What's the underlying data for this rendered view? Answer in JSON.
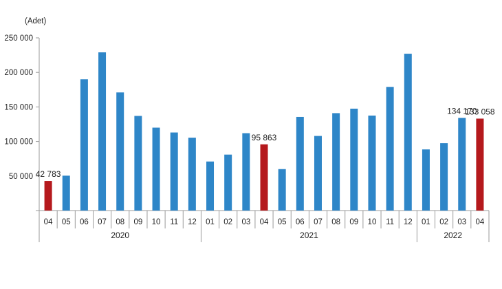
{
  "chart_data": {
    "type": "bar",
    "ylabel": "(Adet)",
    "ylim": [
      0,
      250000
    ],
    "yticks": [
      {
        "value": 0,
        "label": ""
      },
      {
        "value": 50000,
        "label": "50 000"
      },
      {
        "value": 100000,
        "label": "100 000"
      },
      {
        "value": 150000,
        "label": "150 000"
      },
      {
        "value": 200000,
        "label": "200 000"
      },
      {
        "value": 250000,
        "label": "250 000"
      }
    ],
    "grid": false,
    "colors": {
      "default": "#2e86c8",
      "highlight": "#b5191d"
    },
    "groups": [
      {
        "year": "2020",
        "months": [
          "04",
          "05",
          "06",
          "07",
          "08",
          "09",
          "10",
          "11",
          "12"
        ]
      },
      {
        "year": "2021",
        "months": [
          "01",
          "02",
          "03",
          "04",
          "05",
          "06",
          "07",
          "08",
          "09",
          "10",
          "11",
          "12"
        ]
      },
      {
        "year": "2022",
        "months": [
          "01",
          "02",
          "03",
          "04"
        ]
      }
    ],
    "values": [
      42783,
      50500,
      190000,
      229000,
      171000,
      137000,
      120000,
      113000,
      105500,
      71000,
      81000,
      112000,
      95863,
      60000,
      135500,
      108000,
      141000,
      147500,
      137500,
      179000,
      227000,
      88500,
      97500,
      134170,
      133058
    ],
    "highlight": [
      0,
      12,
      24
    ],
    "data_labels": [
      {
        "index": 0,
        "text": "42 783"
      },
      {
        "index": 12,
        "text": "95 863"
      },
      {
        "index": 23,
        "text": "134 170"
      },
      {
        "index": 24,
        "text": "133 058"
      }
    ]
  }
}
